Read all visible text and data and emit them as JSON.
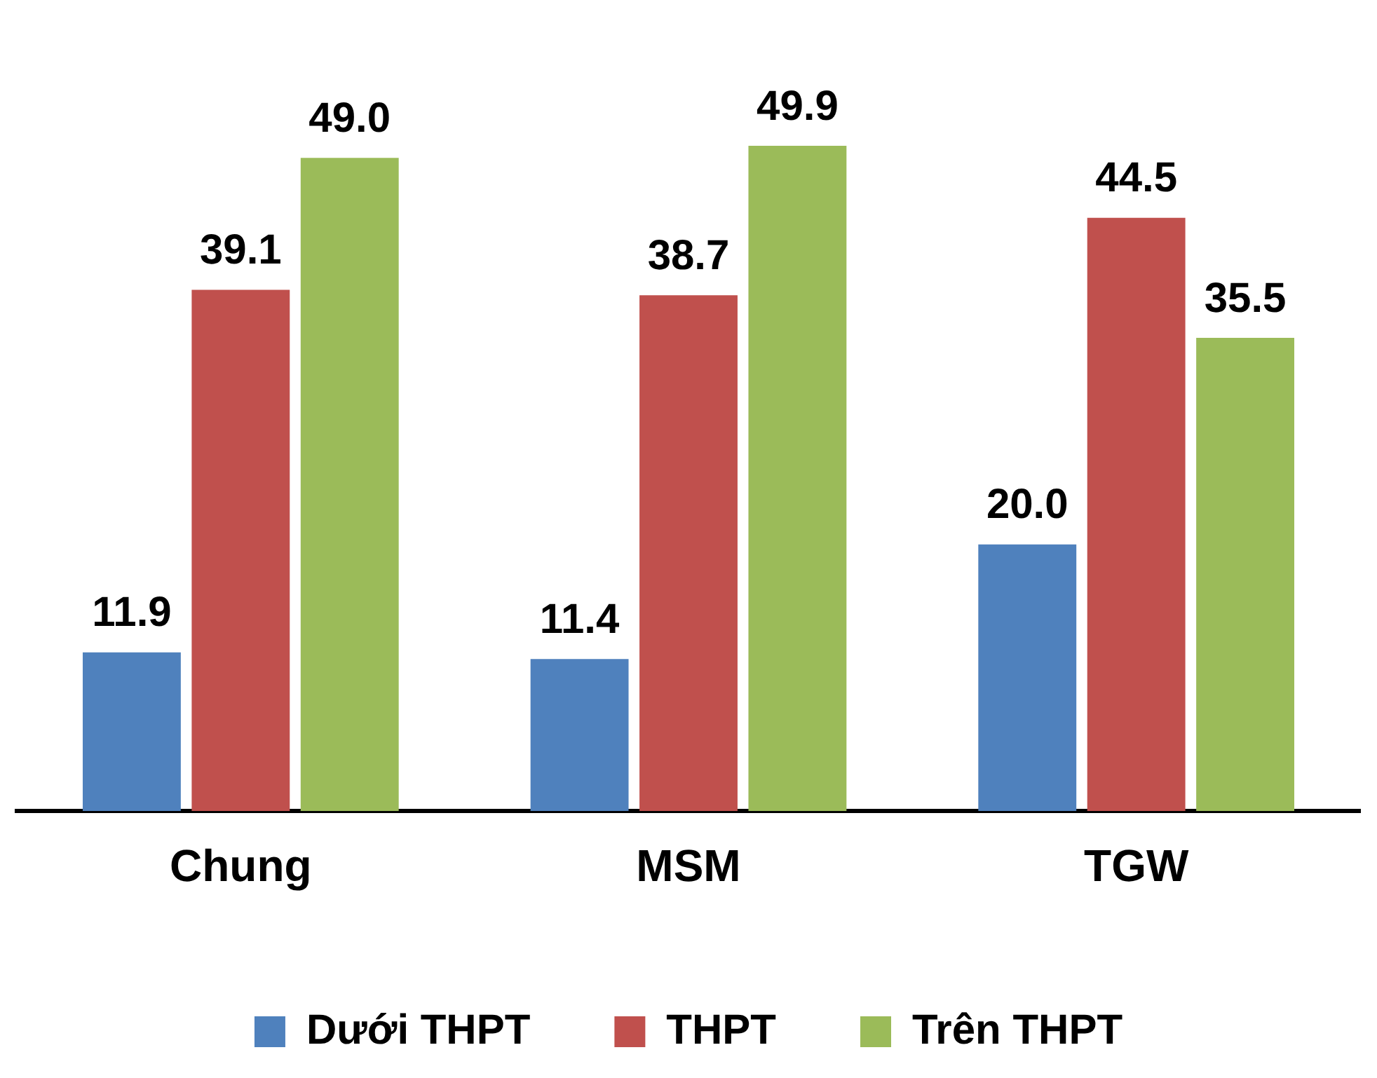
{
  "chart_data": {
    "type": "bar",
    "categories": [
      "Chung",
      "MSM",
      "TGW"
    ],
    "series": [
      {
        "name": "Dưới THPT",
        "color": "#4f81bd",
        "values": [
          11.9,
          11.4,
          20.0
        ],
        "value_labels": [
          "11.9",
          "11.4",
          "20.0"
        ]
      },
      {
        "name": "THPT",
        "color": "#c0504d",
        "values": [
          39.1,
          38.7,
          44.5
        ],
        "value_labels": [
          "39.1",
          "38.7",
          "44.5"
        ]
      },
      {
        "name": "Trên THPT",
        "color": "#9bbb59",
        "values": [
          49.0,
          49.9,
          35.5
        ],
        "value_labels": [
          "49.0",
          "49.9",
          "35.5"
        ]
      }
    ],
    "legend": "bottom",
    "grid": false,
    "tick_labels": "x"
  }
}
